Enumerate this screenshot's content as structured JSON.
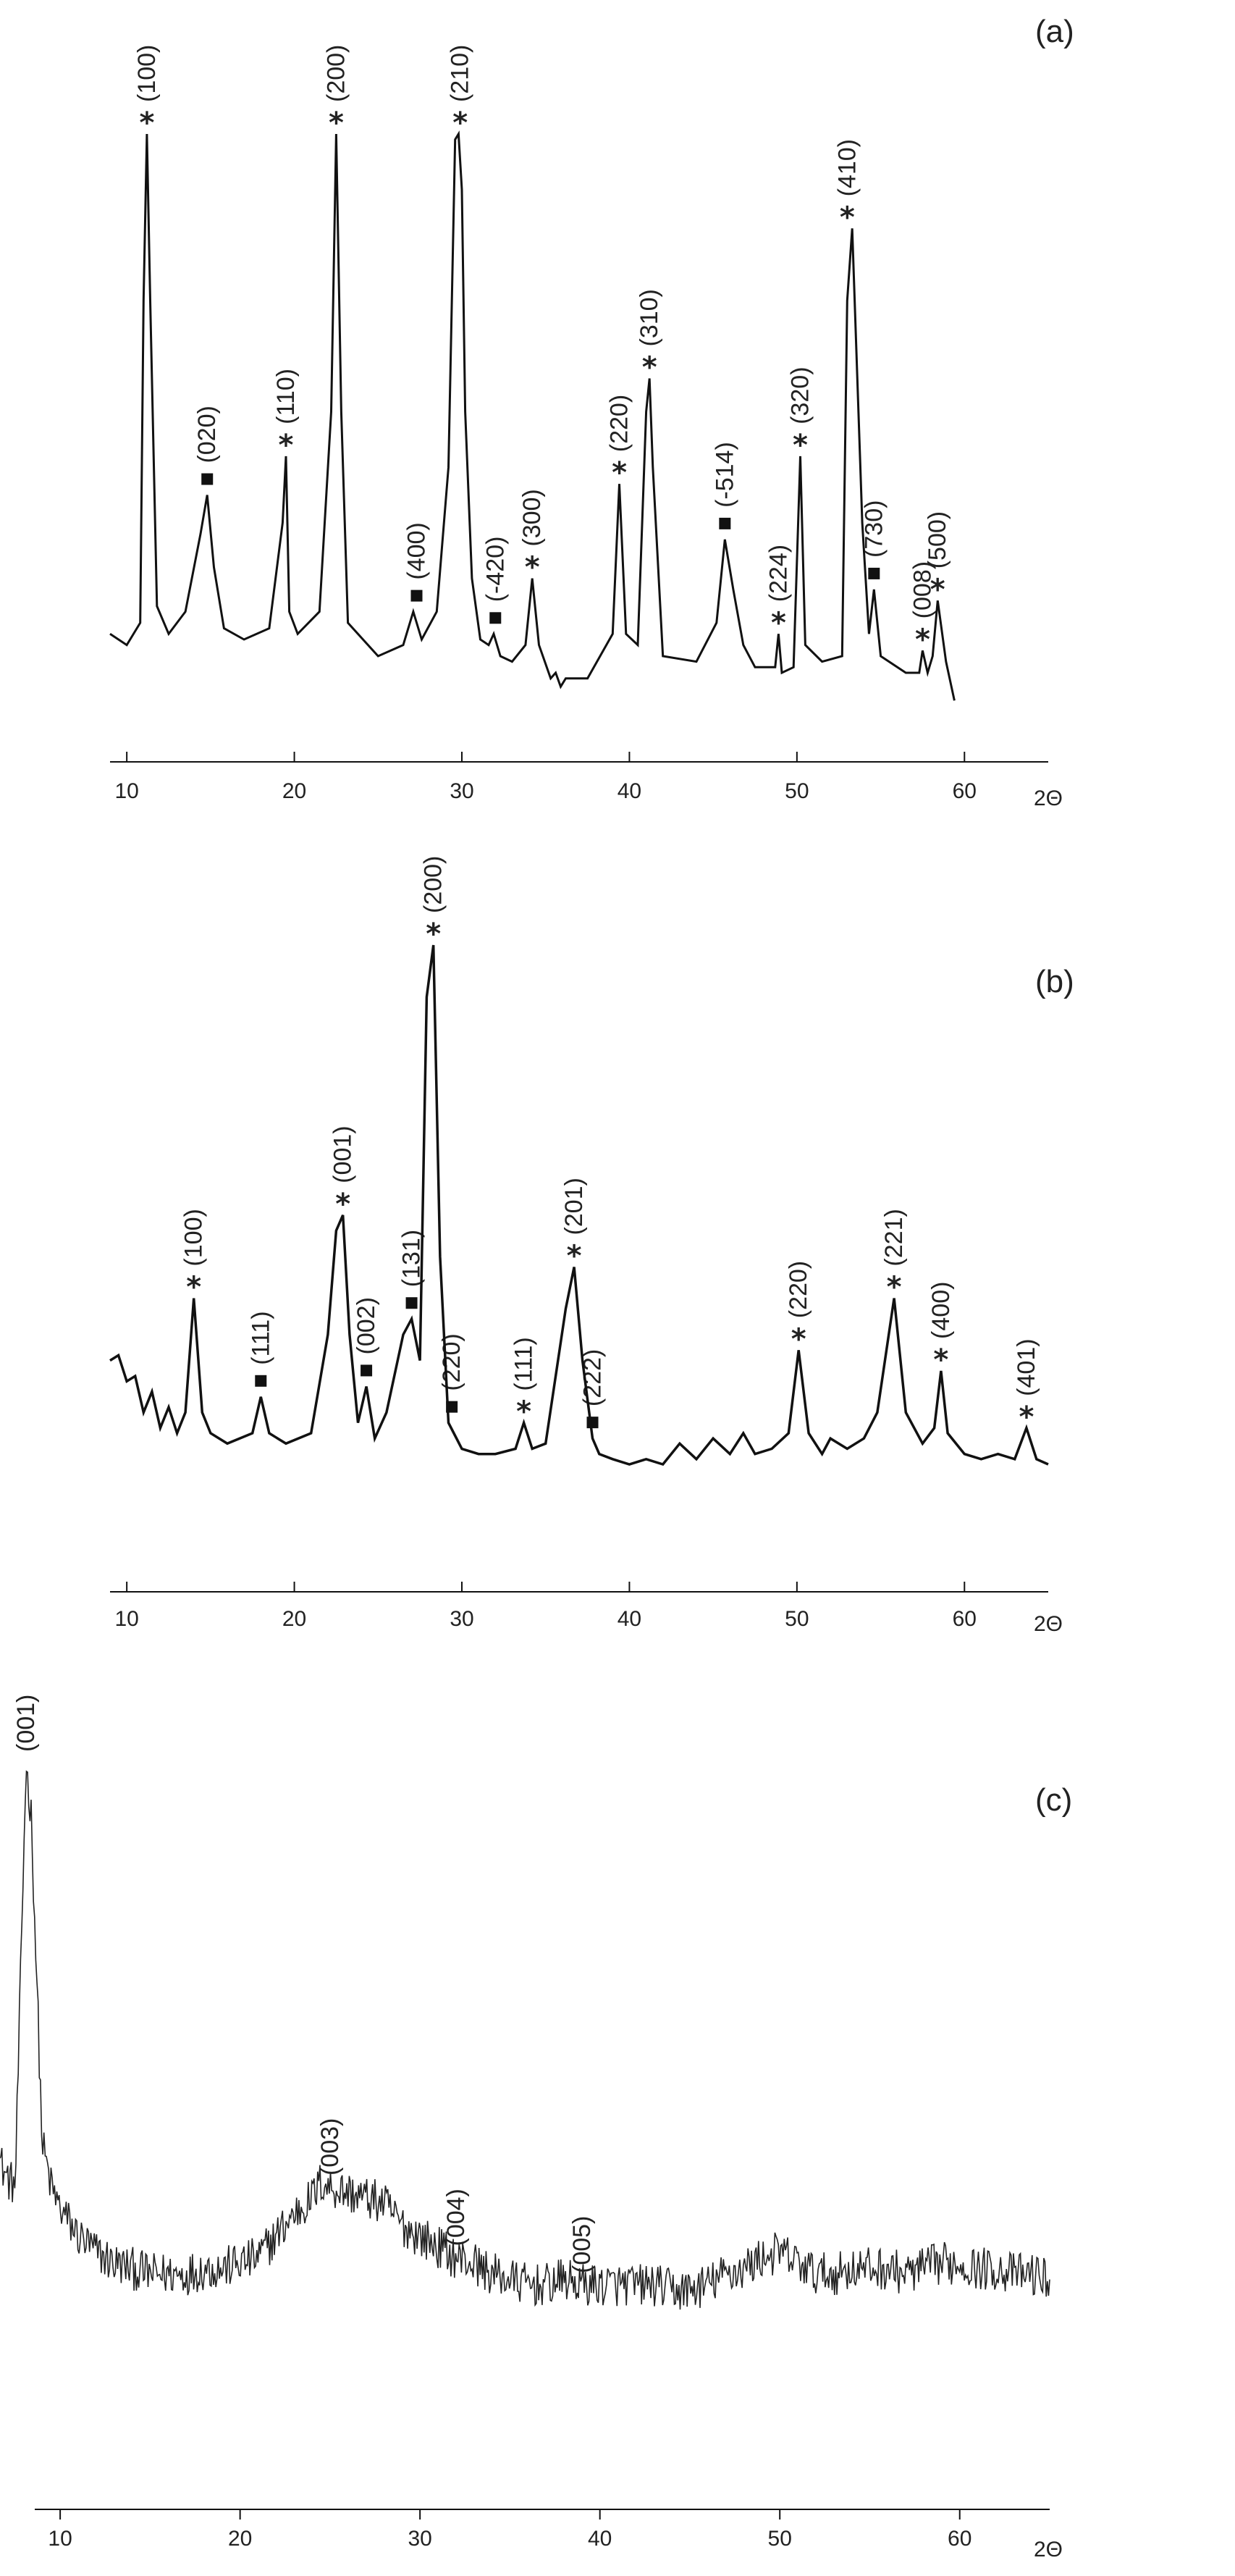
{
  "chart_data": [
    {
      "type": "line",
      "panel_label": "(a)",
      "xlabel": "2Θ",
      "xlim": [
        9,
        65
      ],
      "x_ticks": [
        "10",
        "20",
        "30",
        "40",
        "50",
        "60"
      ],
      "tick_values": [
        10,
        20,
        30,
        40,
        50,
        60
      ],
      "series": [
        {
          "x": [
            9,
            10,
            10.8,
            11.0,
            11.2,
            11.4,
            11.8,
            12.5,
            13.5,
            14.4,
            14.8,
            15.2,
            15.8,
            17,
            18.5,
            19.3,
            19.5,
            19.7,
            20.2,
            21.5,
            22.2,
            22.5,
            22.8,
            23.2,
            25,
            26.5,
            27.1,
            27.6,
            28.5,
            29.2,
            29.6,
            29.8,
            30.0,
            30.2,
            30.6,
            31.1,
            31.6,
            31.9,
            32.3,
            33,
            33.8,
            34.2,
            34.6,
            35.3,
            35.6,
            35.9,
            36.2,
            37.5,
            39.0,
            39.4,
            39.8,
            40.5,
            41.0,
            41.2,
            41.4,
            42,
            44,
            45.2,
            45.7,
            46.2,
            46.8,
            47.5,
            48.7,
            48.9,
            49.1,
            49.8,
            50.2,
            50.5,
            51.5,
            52.7,
            53.0,
            53.3,
            53.9,
            54.3,
            54.6,
            55.0,
            56.5,
            57.3,
            57.5,
            57.8,
            58.1,
            58.4,
            58.9,
            59.4
          ],
          "y": [
            10,
            8,
            12,
            70,
            100,
            70,
            15,
            10,
            14,
            28,
            35,
            22,
            11,
            9,
            11,
            30,
            42,
            14,
            10,
            14,
            50,
            100,
            50,
            12,
            6,
            8,
            14,
            9,
            14,
            40,
            99,
            100,
            90,
            50,
            20,
            9,
            8,
            10,
            6,
            5,
            8,
            20,
            8,
            2,
            3,
            0.5,
            2,
            2,
            10,
            37,
            10,
            8,
            50,
            56,
            40,
            6,
            5,
            12,
            27,
            18,
            8,
            4,
            4,
            10,
            3,
            4,
            42,
            8,
            5,
            6,
            70,
            83,
            30,
            10,
            18,
            6,
            3,
            3,
            7,
            3,
            6,
            16,
            5,
            -2
          ]
        }
      ],
      "annotations": [
        {
          "text": "(100)",
          "marker": "star",
          "x": 11.2,
          "y": 100
        },
        {
          "text": "(020)",
          "marker": "square",
          "x": 14.8,
          "y": 35
        },
        {
          "text": "(110)",
          "marker": "star",
          "x": 19.5,
          "y": 42
        },
        {
          "text": "(200)",
          "marker": "star",
          "x": 22.5,
          "y": 100
        },
        {
          "text": "(400)",
          "marker": "square",
          "x": 27.3,
          "y": 14
        },
        {
          "text": "(210)",
          "marker": "star",
          "x": 29.9,
          "y": 100
        },
        {
          "text": "(-420)",
          "marker": "square",
          "x": 32.0,
          "y": 10
        },
        {
          "text": "(300)",
          "marker": "star",
          "x": 34.2,
          "y": 20
        },
        {
          "text": "(220)",
          "marker": "star",
          "x": 39.4,
          "y": 37
        },
        {
          "text": "(310)",
          "marker": "star",
          "x": 41.2,
          "y": 56
        },
        {
          "text": "(-514)",
          "marker": "square",
          "x": 45.7,
          "y": 27
        },
        {
          "text": "(224)",
          "marker": "star",
          "x": 48.9,
          "y": 10
        },
        {
          "text": "(320)",
          "marker": "star",
          "x": 50.2,
          "y": 42
        },
        {
          "text": "(410)",
          "marker": "star",
          "x": 53.0,
          "y": 83
        },
        {
          "text": "(730)",
          "marker": "square",
          "x": 54.6,
          "y": 18
        },
        {
          "text": "(008)",
          "marker": "star",
          "x": 57.5,
          "y": 7
        },
        {
          "text": "(500)",
          "marker": "star",
          "x": 58.4,
          "y": 16
        }
      ]
    },
    {
      "type": "line",
      "panel_label": "(b)",
      "xlabel": "2Θ",
      "xlim": [
        9,
        65
      ],
      "x_ticks": [
        "10",
        "20",
        "30",
        "40",
        "50",
        "60"
      ],
      "tick_values": [
        10,
        20,
        30,
        40,
        50,
        60
      ],
      "series": [
        {
          "x": [
            9,
            9.5,
            10,
            10.5,
            11,
            11.5,
            12,
            12.5,
            13,
            13.5,
            14.0,
            14.5,
            15,
            16,
            17.5,
            18.0,
            18.5,
            19.5,
            21,
            22,
            22.5,
            22.9,
            23.3,
            23.8,
            24.3,
            24.8,
            25.5,
            26.5,
            27.0,
            27.5,
            27.9,
            28.3,
            28.7,
            29.2,
            30,
            31,
            32,
            33.2,
            33.7,
            34.2,
            35,
            36.2,
            36.7,
            37.2,
            37.8,
            38.2,
            39,
            40,
            41,
            42,
            43,
            44,
            45,
            46,
            46.8,
            47.5,
            48.5,
            49.5,
            50.1,
            50.7,
            51.5,
            52,
            53,
            54,
            54.8,
            55.8,
            56.5,
            57.5,
            58.2,
            58.6,
            59.0,
            60,
            61,
            62,
            63,
            63.7,
            64.3,
            65
          ],
          "y": [
            20,
            21,
            16,
            17,
            10,
            14,
            7,
            11,
            6,
            10,
            32,
            10,
            6,
            4,
            6,
            13,
            6,
            4,
            6,
            25,
            45,
            48,
            25,
            8,
            15,
            5,
            10,
            25,
            28,
            20,
            90,
            100,
            40,
            8,
            3,
            2,
            2,
            3,
            8,
            3,
            4,
            30,
            38,
            20,
            5,
            2,
            1,
            0,
            1,
            0,
            4,
            1,
            5,
            2,
            6,
            2,
            3,
            6,
            22,
            6,
            2,
            5,
            3,
            5,
            10,
            32,
            10,
            4,
            7,
            18,
            6,
            2,
            1,
            2,
            1,
            7,
            1,
            0
          ]
        }
      ],
      "annotations": [
        {
          "text": "(100)",
          "marker": "star",
          "x": 14.0,
          "y": 32
        },
        {
          "text": "(111)",
          "marker": "square",
          "x": 18.0,
          "y": 13
        },
        {
          "text": "(001)",
          "marker": "star",
          "x": 22.9,
          "y": 48
        },
        {
          "text": "(002)",
          "marker": "square",
          "x": 24.3,
          "y": 15
        },
        {
          "text": "(131)",
          "marker": "square",
          "x": 27.0,
          "y": 28
        },
        {
          "text": "(200)",
          "marker": "star",
          "x": 28.3,
          "y": 100
        },
        {
          "text": "(220)",
          "marker": "square",
          "x": 29.4,
          "y": 8
        },
        {
          "text": "(111)",
          "marker": "star",
          "x": 33.7,
          "y": 8
        },
        {
          "text": "(201)",
          "marker": "star",
          "x": 36.7,
          "y": 38
        },
        {
          "text": "(222)",
          "marker": "square",
          "x": 37.8,
          "y": 5
        },
        {
          "text": "(220)",
          "marker": "star",
          "x": 50.1,
          "y": 22
        },
        {
          "text": "(221)",
          "marker": "star",
          "x": 55.8,
          "y": 32
        },
        {
          "text": "(400)",
          "marker": "star",
          "x": 58.6,
          "y": 18
        },
        {
          "text": "(401)",
          "marker": "star",
          "x": 63.7,
          "y": 7
        }
      ]
    },
    {
      "type": "line",
      "panel_label": "(c)",
      "xlabel": "2Θ",
      "xlim": [
        4,
        65
      ],
      "x_ticks": [
        "10",
        "20",
        "30",
        "40",
        "50",
        "60"
      ],
      "tick_values": [
        10,
        20,
        30,
        40,
        50,
        60
      ],
      "series": [
        {
          "x": [
            6.5,
            7,
            7.5,
            7.8,
            8.1,
            8.4,
            8.7,
            9,
            9.5,
            10,
            11,
            12,
            13,
            14,
            15,
            16,
            17,
            18,
            19,
            20,
            21,
            22,
            23,
            24,
            24.5,
            25,
            26,
            27,
            28,
            29,
            30,
            31,
            32,
            33,
            34,
            35,
            36,
            37,
            38,
            39,
            40,
            41,
            42,
            43,
            44,
            45,
            46,
            47,
            48,
            49,
            50,
            51,
            52,
            53,
            54,
            55,
            56,
            57,
            58,
            59,
            60,
            61,
            62,
            63,
            64,
            65
          ],
          "y": [
            28,
            24,
            22,
            60,
            100,
            90,
            60,
            30,
            22,
            18,
            13,
            10,
            8,
            7,
            6,
            6,
            6,
            7,
            7,
            8,
            9,
            13,
            17,
            20,
            23,
            22,
            21,
            20,
            19,
            15,
            13,
            11,
            9,
            8,
            6,
            5,
            4,
            4,
            5,
            4,
            4,
            4,
            4,
            4,
            3,
            3,
            4,
            6,
            7,
            9,
            10,
            8,
            6,
            6,
            7,
            7,
            7,
            6,
            7,
            8,
            8,
            7,
            7,
            6,
            6,
            5
          ],
          "noise": 4
        }
      ],
      "annotations": [
        {
          "text": "(001)",
          "marker": "none",
          "x": 8.1,
          "y": 100
        },
        {
          "text": "(003)",
          "marker": "none",
          "x": 25.0,
          "y": 22
        },
        {
          "text": "(004)",
          "marker": "none",
          "x": 32.0,
          "y": 9
        },
        {
          "text": "(005)",
          "marker": "none",
          "x": 39.0,
          "y": 4
        }
      ]
    }
  ]
}
